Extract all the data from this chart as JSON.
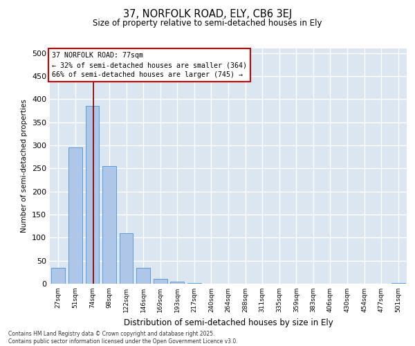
{
  "title1": "37, NORFOLK ROAD, ELY, CB6 3EJ",
  "title2": "Size of property relative to semi-detached houses in Ely",
  "xlabel": "Distribution of semi-detached houses by size in Ely",
  "ylabel": "Number of semi-detached properties",
  "categories": [
    "27sqm",
    "51sqm",
    "74sqm",
    "98sqm",
    "122sqm",
    "146sqm",
    "169sqm",
    "193sqm",
    "217sqm",
    "240sqm",
    "264sqm",
    "288sqm",
    "311sqm",
    "335sqm",
    "359sqm",
    "383sqm",
    "406sqm",
    "430sqm",
    "454sqm",
    "477sqm",
    "501sqm"
  ],
  "values": [
    35,
    295,
    385,
    255,
    110,
    35,
    10,
    5,
    2,
    0,
    0,
    0,
    0,
    0,
    0,
    0,
    0,
    0,
    0,
    0,
    2
  ],
  "bar_color": "#aec6e8",
  "bar_edge_color": "#5b9bd5",
  "annotation_text": "37 NORFOLK ROAD: 77sqm\n← 32% of semi-detached houses are smaller (364)\n66% of semi-detached houses are larger (745) →",
  "annotation_box_color": "white",
  "annotation_box_edge": "#cc0000",
  "property_line_color": "#8b0000",
  "ylim": [
    0,
    510
  ],
  "yticks": [
    0,
    50,
    100,
    150,
    200,
    250,
    300,
    350,
    400,
    450,
    500
  ],
  "background_color": "#dce6f1",
  "grid_color": "white",
  "footer1": "Contains HM Land Registry data © Crown copyright and database right 2025.",
  "footer2": "Contains public sector information licensed under the Open Government Licence v3.0."
}
